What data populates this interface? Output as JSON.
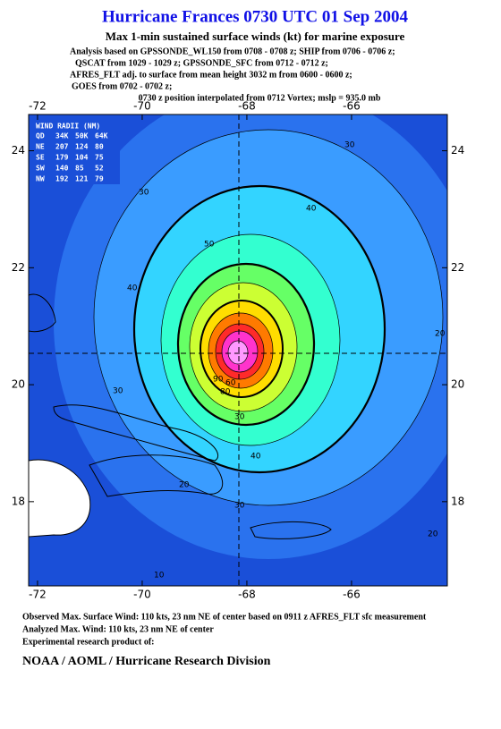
{
  "title": "Hurricane Frances 0730 UTC 01 Sep 2004",
  "subtitle": "Max 1-min sustained surface winds (kt) for marine exposure",
  "analysis_lines": [
    "Analysis based on  GPSSONDE_WL150 from 0708 - 0708 z;  SHIP from 0706 - 0706 z;",
    "QSCAT from 1029 - 1029 z;  GPSSONDE_SFC from 0712 - 0712 z;",
    "AFRES_FLT adj. to surface from mean height 3032 m from 0600 - 0600 z;",
    "GOES from 0702 - 0702 z;",
    "0730 z position interpolated from 0712 Vortex; mslp = 935.0 mb"
  ],
  "map": {
    "xlim": [
      -72.17,
      -64.17
    ],
    "ylim": [
      16.56,
      24.62
    ],
    "xticks": [
      -72,
      -70,
      -68,
      -66
    ],
    "yticks": [
      18,
      20,
      22,
      24
    ]
  },
  "wind_radii": {
    "title": "WIND RADII (NM)",
    "header": [
      "QD",
      "34K",
      "50K",
      "64K"
    ],
    "rows": [
      [
        "NE",
        "207",
        "124",
        "80"
      ],
      [
        "SE",
        "179",
        "104",
        "75"
      ],
      [
        "SW",
        "140",
        "85",
        "52"
      ],
      [
        "NW",
        "192",
        "121",
        "79"
      ]
    ]
  },
  "contour_labels": [
    "30",
    "40",
    "30",
    "50",
    "40",
    "30",
    "40",
    "30",
    "20",
    "20",
    "20",
    "10",
    "60",
    "80",
    "90",
    "30"
  ],
  "footer": [
    "Observed Max. Surface Wind: 110 kts, 23 nm NE of center based on 0911 z AFRES_FLT sfc measurement",
    "Analyzed Max. Wind: 110 kts, 23 nm NE of center",
    "Experimental research product of:",
    "NOAA / AOML / Hurricane Research Division"
  ]
}
